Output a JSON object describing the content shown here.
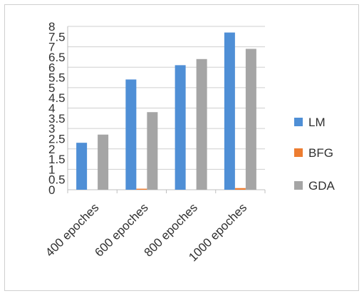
{
  "chart_data": {
    "type": "bar",
    "categories": [
      "400 epoches",
      "600 epoches",
      "800 epoches",
      "1000 epoches"
    ],
    "series": [
      {
        "name": "LM",
        "values": [
          2.3,
          5.4,
          6.1,
          7.7
        ],
        "color": "#4f8fd6"
      },
      {
        "name": "BFG",
        "values": [
          0,
          0.05,
          0,
          0.08
        ],
        "color": "#ed7d31"
      },
      {
        "name": "GDA",
        "values": [
          2.7,
          3.8,
          6.4,
          6.9
        ],
        "color": "#a5a5a5"
      }
    ],
    "yticks": [
      "0",
      "0.5",
      "1",
      "1.5",
      "2",
      "2.5",
      "3",
      "3.5",
      "4",
      "4.5",
      "5",
      "5.5",
      "6",
      "6.5",
      "7",
      "7.5",
      "8"
    ],
    "ylim": [
      0,
      8
    ],
    "title": "",
    "xlabel": "",
    "ylabel": "",
    "grid": true,
    "legend_position": "right"
  }
}
